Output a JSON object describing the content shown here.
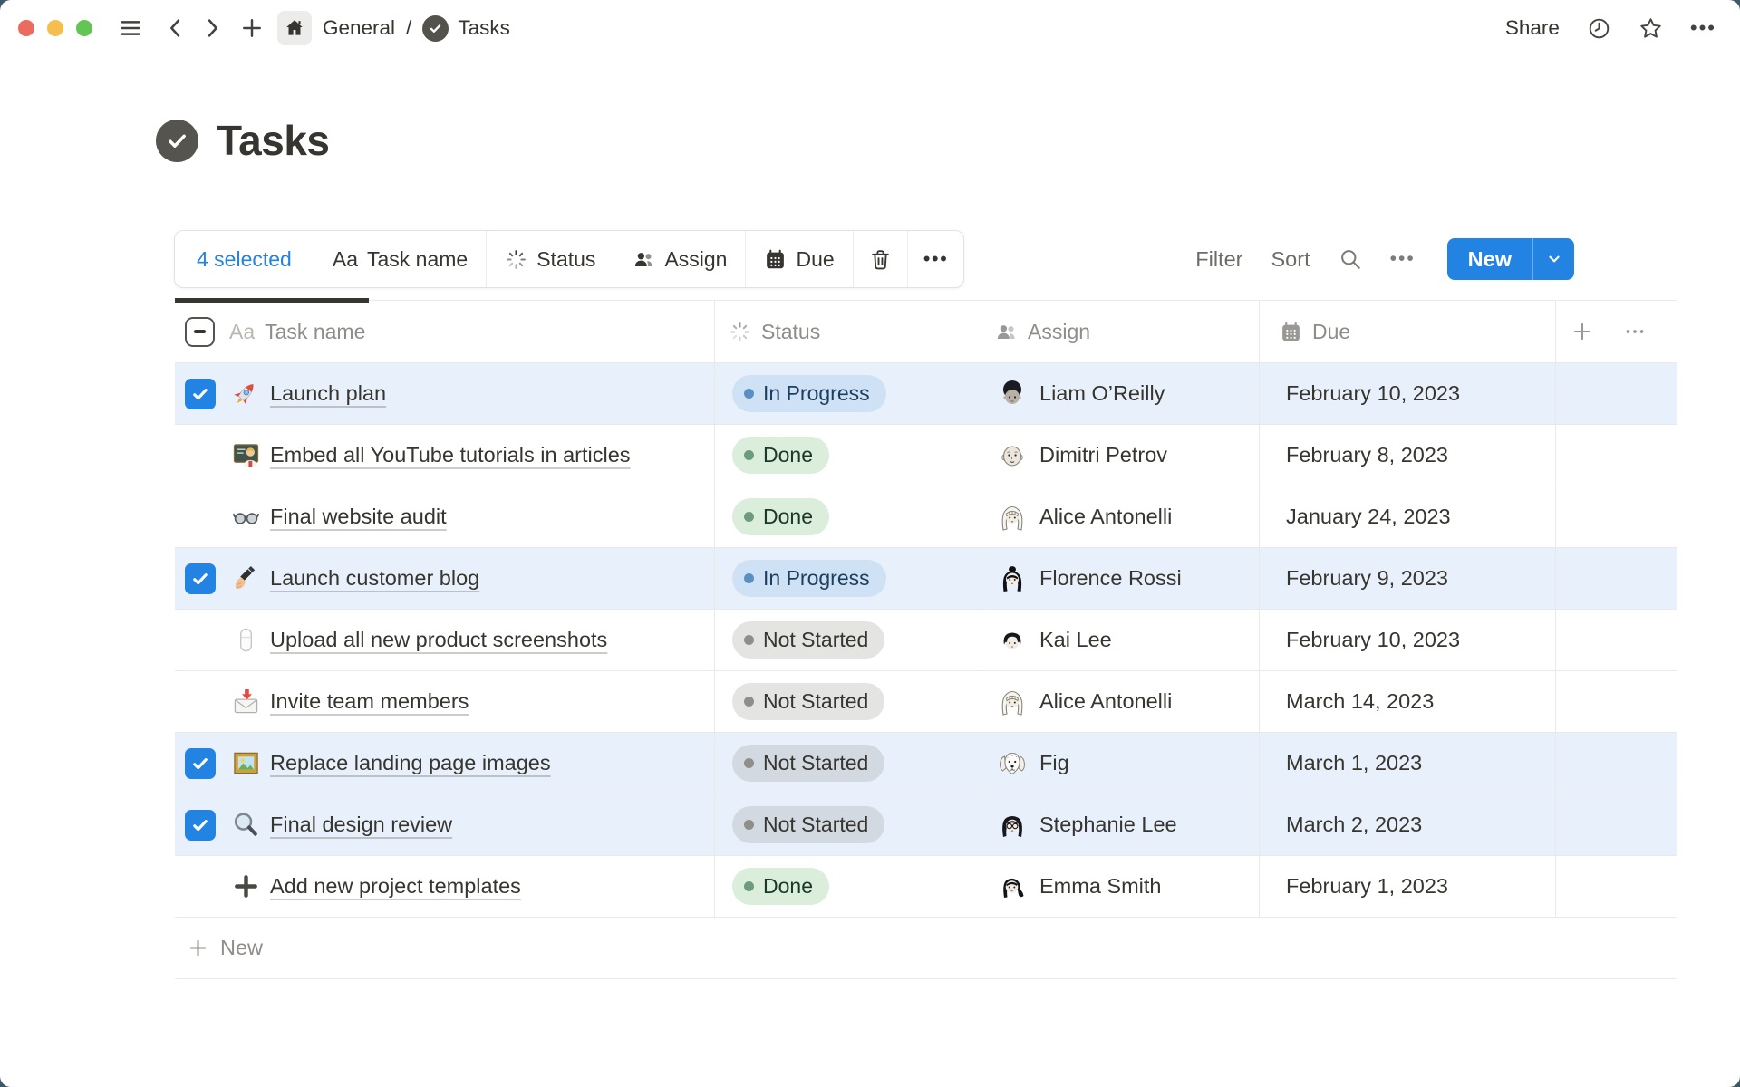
{
  "chrome": {
    "breadcrumb_root": "General",
    "breadcrumb_sep": "/",
    "breadcrumb_page": "Tasks",
    "share_label": "Share",
    "more_glyph": "•••"
  },
  "page": {
    "title": "Tasks"
  },
  "toolbar": {
    "selected_label": "4 selected",
    "field_prefix": "Aa",
    "task_field_label": "Task name",
    "status_label": "Status",
    "assign_label": "Assign",
    "due_label": "Due",
    "more_glyph": "•••",
    "filter_label": "Filter",
    "sort_label": "Sort",
    "right_more_glyph": "•••",
    "new_label": "New"
  },
  "colors": {
    "accent": "#2383e2",
    "selected_row_bg": "#e8f1fb",
    "status_in_progress_bg": "#cfe1f4",
    "status_in_progress_dot": "#5b8fc2",
    "status_done_bg": "#dbeddb",
    "status_done_dot": "#6c9b7d",
    "status_not_started_dot": "#8f8e8a"
  },
  "table": {
    "header": {
      "task_prefix": "Aa",
      "task": "Task name",
      "status": "Status",
      "assign": "Assign",
      "due": "Due"
    },
    "rows": [
      {
        "selected": true,
        "icon": "rocket-icon",
        "task": "Launch plan",
        "status": "In Progress",
        "assignee": "Liam O’Reilly",
        "avatar": "liam",
        "due": "February 10, 2023"
      },
      {
        "selected": false,
        "icon": "teacher-icon",
        "task": "Embed all YouTube tutorials in articles",
        "status": "Done",
        "assignee": "Dimitri Petrov",
        "avatar": "dimitri",
        "due": "February 8, 2023"
      },
      {
        "selected": false,
        "icon": "glasses-icon",
        "task": "Final website audit",
        "status": "Done",
        "assignee": "Alice Antonelli",
        "avatar": "alice",
        "due": "January 24, 2023"
      },
      {
        "selected": true,
        "icon": "writing-hand-icon",
        "task": "Launch customer blog",
        "status": "In Progress",
        "assignee": "Florence Rossi",
        "avatar": "florence",
        "due": "February 9, 2023"
      },
      {
        "selected": false,
        "icon": "mouse-icon",
        "task": "Upload all new product screenshots",
        "status": "Not Started",
        "assignee": "Kai Lee",
        "avatar": "kai",
        "due": "February 10, 2023"
      },
      {
        "selected": false,
        "icon": "envelope-icon",
        "task": "Invite team members",
        "status": "Not Started",
        "assignee": "Alice Antonelli",
        "avatar": "alice",
        "due": "March 14, 2023"
      },
      {
        "selected": true,
        "icon": "picture-icon",
        "task": "Replace landing page images",
        "status": "Not Started",
        "assignee": "Fig",
        "avatar": "fig",
        "due": "March 1, 2023"
      },
      {
        "selected": true,
        "icon": "magnifier-icon",
        "task": "Final design review",
        "status": "Not Started",
        "assignee": "Stephanie Lee",
        "avatar": "stephanie",
        "due": "March 2, 2023"
      },
      {
        "selected": false,
        "icon": "plus-task-icon",
        "task": "Add new project templates",
        "status": "Done",
        "assignee": "Emma Smith",
        "avatar": "emma",
        "due": "February 1, 2023"
      }
    ],
    "new_row_label": "New"
  }
}
